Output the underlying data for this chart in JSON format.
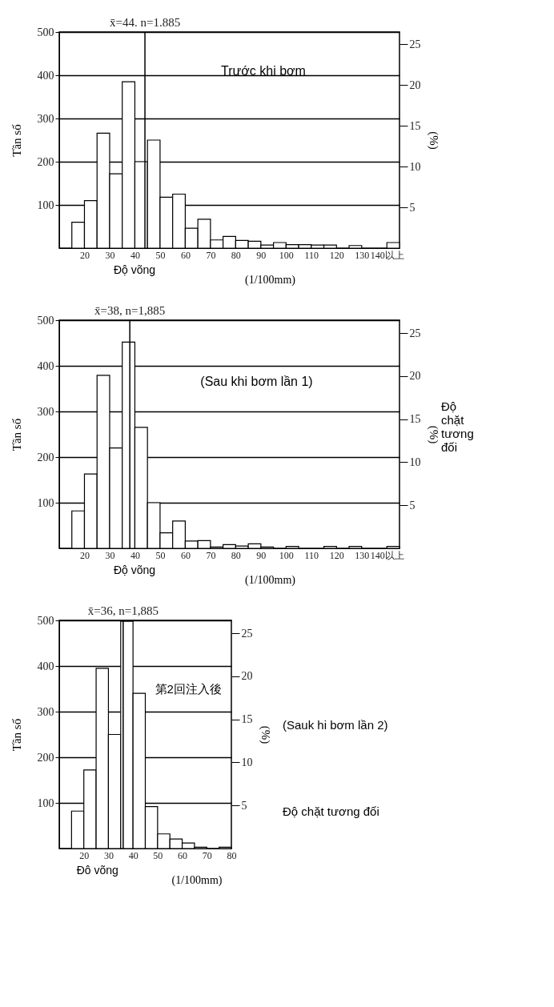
{
  "chart_data": [
    {
      "type": "histogram",
      "title": "Trước khi bơm",
      "xlabel": "Độ võng",
      "ylabel": "Tần số",
      "y2label": "(%)",
      "color": "#ffffff",
      "bins": [
        15,
        20,
        25,
        30,
        35,
        40,
        45,
        50,
        55,
        60,
        65,
        70,
        75,
        80,
        85,
        90,
        95,
        100,
        105,
        110,
        115,
        120,
        125,
        130,
        135,
        140,
        145
      ],
      "values": [
        60,
        110,
        266,
        172,
        385,
        200,
        250,
        118,
        125,
        46,
        67,
        19,
        27,
        18,
        16,
        7,
        13,
        8,
        8,
        7,
        7,
        0,
        6,
        0,
        0,
        13
      ],
      "xlim": [
        10,
        145
      ],
      "xticks": [
        20,
        30,
        40,
        50,
        60,
        70,
        80,
        90,
        100,
        110,
        120,
        130,
        {
          "value": 140,
          "label": "140以上"
        }
      ],
      "ylim": [
        0,
        500
      ],
      "yticks": [
        100,
        200,
        300,
        400,
        500
      ],
      "y2lim": [
        0,
        26.5
      ],
      "y2ticks": [
        5,
        10,
        15,
        20,
        25
      ],
      "grid": "y",
      "ref_lines": [
        {
          "axis": "x",
          "value": 44,
          "label": "x̄=44. n=1.885"
        }
      ],
      "annotations": [
        "(1/100mm)"
      ]
    },
    {
      "type": "histogram",
      "title": "(Sau khi bơm lần 1)",
      "xlabel": "Độ võng",
      "ylabel": "Tần số",
      "y2label": "(%)",
      "color": "#ffffff",
      "bins": [
        15,
        20,
        25,
        30,
        35,
        40,
        45,
        50,
        55,
        60,
        65,
        70,
        75,
        80,
        85,
        90,
        95,
        100,
        105,
        110,
        115,
        120,
        125,
        130,
        135,
        140,
        145
      ],
      "values": [
        82,
        163,
        379,
        220,
        452,
        265,
        100,
        34,
        60,
        16,
        17,
        3,
        8,
        5,
        10,
        3,
        0,
        4,
        0,
        0,
        4,
        0,
        4,
        0,
        0,
        4
      ],
      "xlim": [
        10,
        145
      ],
      "xticks": [
        20,
        30,
        40,
        50,
        60,
        70,
        80,
        90,
        100,
        110,
        120,
        130,
        {
          "value": 140,
          "label": "140以上"
        }
      ],
      "ylim": [
        0,
        500
      ],
      "yticks": [
        100,
        200,
        300,
        400,
        500
      ],
      "y2lim": [
        0,
        26.5
      ],
      "y2ticks": [
        5,
        10,
        15,
        20,
        25
      ],
      "grid": "y",
      "ref_lines": [
        {
          "axis": "x",
          "value": 38,
          "label": "x̄=38, n=1,885"
        }
      ],
      "annotations": [
        "(1/100mm)",
        "Độ chặt tương đối"
      ]
    },
    {
      "type": "histogram",
      "xlabel": "Đô võng",
      "ylabel": "Tần số",
      "y2label": "(%)",
      "color": "#ffffff",
      "bins": [
        15,
        20,
        25,
        30,
        35,
        40,
        45,
        50,
        55,
        60,
        65,
        70,
        75,
        80
      ],
      "values": [
        82,
        172,
        395,
        250,
        498,
        340,
        92,
        32,
        21,
        12,
        3,
        0,
        3
      ],
      "xlim": [
        10,
        80
      ],
      "xticks": [
        20,
        30,
        40,
        50,
        60,
        70,
        80
      ],
      "ylim": [
        0,
        500
      ],
      "yticks": [
        100,
        200,
        300,
        400,
        500
      ],
      "y2lim": [
        0,
        26.5
      ],
      "y2ticks": [
        5,
        10,
        15,
        20,
        25
      ],
      "grid": "y",
      "ref_lines": [
        {
          "axis": "x",
          "value": 36,
          "label": "x̄=36, n=1,885"
        }
      ],
      "annotations": [
        "(1/100mm)",
        "第2回注入後",
        "(Sauk hi bơm lần 2)",
        "Độ chặt tương đối"
      ]
    }
  ]
}
